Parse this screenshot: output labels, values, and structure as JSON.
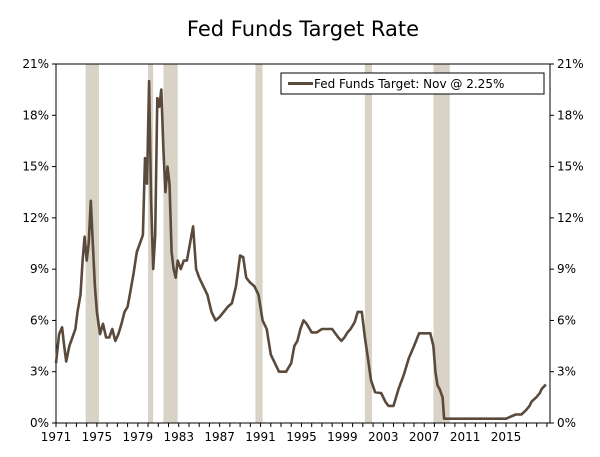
{
  "chart_data": {
    "type": "line",
    "title": "Fed Funds Target Rate",
    "xlabel": "",
    "ylabel": "",
    "xlim": [
      1971,
      2019.3
    ],
    "ylim": [
      0,
      21
    ],
    "y_ticks": [
      0,
      3,
      6,
      9,
      12,
      15,
      18,
      21
    ],
    "y_tick_labels": [
      "0%",
      "3%",
      "6%",
      "9%",
      "12%",
      "15%",
      "18%",
      "21%"
    ],
    "x_ticks": [
      1971,
      1975,
      1979,
      1983,
      1987,
      1991,
      1995,
      1999,
      2003,
      2007,
      2011,
      2015
    ],
    "x_tick_labels": [
      "1971",
      "1975",
      "1979",
      "1983",
      "1987",
      "1991",
      "1995",
      "1999",
      "2003",
      "2007",
      "2011",
      "2015"
    ],
    "legend": {
      "position": "top-right",
      "entries": [
        "Fed Funds Target: Nov @ 2.25%"
      ]
    },
    "colors": {
      "line": "#5a4a3c",
      "recession": "#d9d3c7",
      "axis": "#000000"
    },
    "recessions": [
      {
        "start": 1973.9,
        "end": 1975.2
      },
      {
        "start": 1980.0,
        "end": 1980.5
      },
      {
        "start": 1981.5,
        "end": 1982.9
      },
      {
        "start": 1990.5,
        "end": 1991.2
      },
      {
        "start": 2001.2,
        "end": 2001.9
      },
      {
        "start": 2007.9,
        "end": 2009.5
      }
    ],
    "series": [
      {
        "name": "Fed Funds Target: Nov @ 2.25%",
        "x": [
          1971.0,
          1971.3,
          1971.6,
          1971.8,
          1972.0,
          1972.3,
          1972.6,
          1972.9,
          1973.1,
          1973.4,
          1973.6,
          1973.8,
          1974.0,
          1974.2,
          1974.4,
          1974.6,
          1974.8,
          1975.0,
          1975.3,
          1975.6,
          1975.9,
          1976.2,
          1976.5,
          1976.8,
          1977.1,
          1977.4,
          1977.7,
          1978.0,
          1978.3,
          1978.6,
          1978.9,
          1979.2,
          1979.5,
          1979.7,
          1979.9,
          1980.1,
          1980.3,
          1980.5,
          1980.7,
          1980.9,
          1981.1,
          1981.3,
          1981.5,
          1981.7,
          1981.9,
          1982.1,
          1982.3,
          1982.5,
          1982.7,
          1982.9,
          1983.2,
          1983.5,
          1983.8,
          1984.1,
          1984.4,
          1984.7,
          1985.0,
          1985.4,
          1985.8,
          1986.2,
          1986.6,
          1987.0,
          1987.4,
          1987.8,
          1988.2,
          1988.6,
          1989.0,
          1989.3,
          1989.6,
          1990.0,
          1990.4,
          1990.8,
          1991.2,
          1991.6,
          1992.0,
          1992.4,
          1992.8,
          1993.5,
          1994.0,
          1994.3,
          1994.6,
          1994.9,
          1995.2,
          1995.5,
          1996.0,
          1996.5,
          1997.0,
          1997.5,
          1998.0,
          1998.6,
          1998.9,
          1999.2,
          1999.5,
          1999.8,
          2000.2,
          2000.5,
          2000.9,
          2001.2,
          2001.5,
          2001.8,
          2002.2,
          2002.8,
          2003.2,
          2003.5,
          2004.0,
          2004.5,
          2005.0,
          2005.5,
          2006.0,
          2006.5,
          2007.0,
          2007.6,
          2007.9,
          2008.1,
          2008.3,
          2008.5,
          2008.8,
          2008.95,
          2009.5,
          2011.0,
          2013.0,
          2015.0,
          2015.95,
          2016.5,
          2016.95,
          2017.3,
          2017.5,
          2017.95,
          2018.3,
          2018.5,
          2018.9
        ],
        "values": [
          3.5,
          5.2,
          5.6,
          4.5,
          3.6,
          4.5,
          5.0,
          5.5,
          6.5,
          7.5,
          9.5,
          10.9,
          9.5,
          10.5,
          13.0,
          10.5,
          8.0,
          6.5,
          5.2,
          5.8,
          5.0,
          5.0,
          5.5,
          4.8,
          5.2,
          5.8,
          6.5,
          6.8,
          7.8,
          8.8,
          10.0,
          10.5,
          11.0,
          15.5,
          14.0,
          20.0,
          13.0,
          9.0,
          11.0,
          19.0,
          18.5,
          19.5,
          16.0,
          13.5,
          15.0,
          14.0,
          10.0,
          9.0,
          8.5,
          9.5,
          9.0,
          9.5,
          9.5,
          10.5,
          11.5,
          9.0,
          8.5,
          8.0,
          7.5,
          6.5,
          6.0,
          6.2,
          6.5,
          6.8,
          7.0,
          8.0,
          9.8,
          9.7,
          8.5,
          8.2,
          8.0,
          7.5,
          6.0,
          5.5,
          4.0,
          3.5,
          3.0,
          3.0,
          3.5,
          4.5,
          4.8,
          5.5,
          6.0,
          5.8,
          5.3,
          5.3,
          5.5,
          5.5,
          5.5,
          5.0,
          4.8,
          5.0,
          5.3,
          5.5,
          5.9,
          6.5,
          6.5,
          5.0,
          3.8,
          2.5,
          1.8,
          1.75,
          1.25,
          1.0,
          1.0,
          2.0,
          2.8,
          3.8,
          4.5,
          5.25,
          5.25,
          5.25,
          4.5,
          3.0,
          2.2,
          2.0,
          1.5,
          0.25,
          0.25,
          0.25,
          0.25,
          0.25,
          0.5,
          0.5,
          0.75,
          1.0,
          1.25,
          1.5,
          1.75,
          2.0,
          2.25
        ]
      }
    ]
  }
}
